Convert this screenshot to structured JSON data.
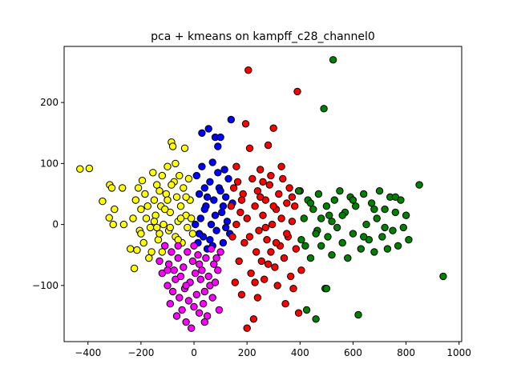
{
  "chart_data": {
    "type": "scatter",
    "title": "pca + kmeans on kampff_c28_channel0",
    "xlabel": "",
    "ylabel": "",
    "xlim": [
      -490,
      1010
    ],
    "ylim": [
      -192,
      292
    ],
    "xticks": [
      -400,
      -200,
      0,
      200,
      400,
      600,
      800,
      1000
    ],
    "yticks": [
      -100,
      0,
      100,
      200
    ],
    "grid": false,
    "legend": "none",
    "marker_edge_color": "#000000",
    "series": [
      {
        "color": "#ffff00",
        "points": [
          [
            -430,
            91
          ],
          [
            -395,
            92
          ],
          [
            -345,
            38
          ],
          [
            -320,
            11
          ],
          [
            -318,
            65
          ],
          [
            -310,
            60
          ],
          [
            -305,
            0
          ],
          [
            -300,
            25
          ],
          [
            -270,
            60
          ],
          [
            -265,
            0
          ],
          [
            -240,
            -40
          ],
          [
            -225,
            -72
          ],
          [
            -230,
            10
          ],
          [
            -220,
            40
          ],
          [
            -215,
            -42
          ],
          [
            -210,
            60
          ],
          [
            -205,
            -10
          ],
          [
            -200,
            25
          ],
          [
            -195,
            72
          ],
          [
            -190,
            -30
          ],
          [
            -185,
            50
          ],
          [
            -180,
            10
          ],
          [
            -170,
            -55
          ],
          [
            -165,
            -5
          ],
          [
            -160,
            -45
          ],
          [
            -155,
            85
          ],
          [
            -150,
            40
          ],
          [
            -145,
            15
          ],
          [
            -140,
            65
          ],
          [
            -135,
            -25
          ],
          [
            -130,
            -15
          ],
          [
            -125,
            30
          ],
          [
            -120,
            80
          ],
          [
            -115,
            0
          ],
          [
            -110,
            -35
          ],
          [
            -105,
            50
          ],
          [
            -100,
            95
          ],
          [
            -95,
            -10
          ],
          [
            -90,
            20
          ],
          [
            -85,
            135
          ],
          [
            -80,
            128
          ],
          [
            -75,
            70
          ],
          [
            -70,
            -20
          ],
          [
            -65,
            45
          ],
          [
            -60,
            5
          ],
          [
            -55,
            80
          ],
          [
            -50,
            30
          ],
          [
            -45,
            -30
          ],
          [
            -40,
            60
          ],
          [
            -35,
            125
          ],
          [
            -30,
            15
          ],
          [
            -25,
            -5
          ],
          [
            -20,
            75
          ],
          [
            -15,
            40
          ],
          [
            -10,
            10
          ],
          [
            -5,
            -15
          ],
          [
            -150,
            5
          ],
          [
            -130,
            55
          ],
          [
            -110,
            25
          ],
          [
            -90,
            -5
          ],
          [
            -70,
            100
          ],
          [
            -50,
            10
          ],
          [
            -120,
            -45
          ],
          [
            -175,
            30
          ],
          [
            -200,
            -15
          ],
          [
            -100,
            40
          ],
          [
            -60,
            -25
          ],
          [
            -85,
            65
          ],
          [
            -30,
            45
          ],
          [
            -140,
            -5
          ]
        ]
      },
      {
        "color": "#0000ff",
        "points": [
          [
            5,
            0
          ],
          [
            10,
            80
          ],
          [
            15,
            -30
          ],
          [
            20,
            50
          ],
          [
            25,
            10
          ],
          [
            30,
            150
          ],
          [
            35,
            -20
          ],
          [
            40,
            60
          ],
          [
            45,
            30
          ],
          [
            50,
            -40
          ],
          [
            55,
            157
          ],
          [
            60,
            70
          ],
          [
            65,
            0
          ],
          [
            70,
            102
          ],
          [
            75,
            40
          ],
          [
            80,
            143
          ],
          [
            85,
            -10
          ],
          [
            90,
            128
          ],
          [
            95,
            60
          ],
          [
            100,
            143
          ],
          [
            105,
            20
          ],
          [
            110,
            -30
          ],
          [
            115,
            90
          ],
          [
            120,
            45
          ],
          [
            125,
            5
          ],
          [
            130,
            75
          ],
          [
            135,
            -15
          ],
          [
            140,
            172
          ],
          [
            145,
            35
          ],
          [
            20,
            -15
          ],
          [
            40,
            25
          ],
          [
            60,
            -25
          ],
          [
            80,
            15
          ],
          [
            100,
            55
          ],
          [
            120,
            -5
          ],
          [
            30,
            95
          ],
          [
            70,
            -35
          ],
          [
            90,
            85
          ],
          [
            110,
            30
          ],
          [
            50,
            45
          ]
        ]
      },
      {
        "color": "#ff00ff",
        "points": [
          [
            -130,
            -60
          ],
          [
            -120,
            -80
          ],
          [
            -110,
            -35
          ],
          [
            -100,
            -100
          ],
          [
            -95,
            -65
          ],
          [
            -90,
            -130
          ],
          [
            -85,
            -45
          ],
          [
            -80,
            -110
          ],
          [
            -75,
            -75
          ],
          [
            -70,
            -90
          ],
          [
            -65,
            -150
          ],
          [
            -60,
            -55
          ],
          [
            -55,
            -120
          ],
          [
            -50,
            -85
          ],
          [
            -45,
            -140
          ],
          [
            -40,
            -70
          ],
          [
            -35,
            -105
          ],
          [
            -30,
            -160
          ],
          [
            -25,
            -45
          ],
          [
            -20,
            -125
          ],
          [
            -15,
            -95
          ],
          [
            -10,
            -170
          ],
          [
            -5,
            -60
          ],
          [
            0,
            -135
          ],
          [
            5,
            -80
          ],
          [
            10,
            -115
          ],
          [
            15,
            -50
          ],
          [
            20,
            -145
          ],
          [
            25,
            -90
          ],
          [
            30,
            -75
          ],
          [
            35,
            -130
          ],
          [
            40,
            -110
          ],
          [
            45,
            -55
          ],
          [
            50,
            -150
          ],
          [
            55,
            -85
          ],
          [
            60,
            -100
          ],
          [
            65,
            -40
          ],
          [
            70,
            -120
          ],
          [
            75,
            -65
          ],
          [
            80,
            -95
          ],
          [
            85,
            -55
          ],
          [
            90,
            -75
          ],
          [
            95,
            -140
          ],
          [
            100,
            -45
          ],
          [
            -60,
            -35
          ],
          [
            0,
            -35
          ],
          [
            -100,
            -75
          ],
          [
            20,
            -65
          ],
          [
            -30,
            -100
          ],
          [
            40,
            -160
          ]
        ]
      },
      {
        "color": "#ff0000",
        "points": [
          [
            140,
            30
          ],
          [
            145,
            -20
          ],
          [
            150,
            60
          ],
          [
            155,
            -95
          ],
          [
            160,
            0
          ],
          [
            165,
            70
          ],
          [
            170,
            -60
          ],
          [
            175,
            20
          ],
          [
            180,
            -115
          ],
          [
            185,
            50
          ],
          [
            190,
            -30
          ],
          [
            195,
            165
          ],
          [
            200,
            10
          ],
          [
            205,
            253
          ],
          [
            210,
            125
          ],
          [
            215,
            -80
          ],
          [
            220,
            75
          ],
          [
            225,
            -155
          ],
          [
            230,
            30
          ],
          [
            235,
            -45
          ],
          [
            240,
            55
          ],
          [
            245,
            -10
          ],
          [
            250,
            90
          ],
          [
            255,
            -60
          ],
          [
            260,
            15
          ],
          [
            265,
            -90
          ],
          [
            270,
            40
          ],
          [
            275,
            -25
          ],
          [
            280,
            130
          ],
          [
            285,
            65
          ],
          [
            290,
            -45
          ],
          [
            295,
            0
          ],
          [
            300,
            158
          ],
          [
            305,
            -70
          ],
          [
            310,
            25
          ],
          [
            315,
            -100
          ],
          [
            320,
            50
          ],
          [
            325,
            -35
          ],
          [
            330,
            10
          ],
          [
            335,
            75
          ],
          [
            340,
            -55
          ],
          [
            345,
            -130
          ],
          [
            350,
            35
          ],
          [
            355,
            -20
          ],
          [
            360,
            60
          ],
          [
            365,
            -85
          ],
          [
            370,
            5
          ],
          [
            375,
            -105
          ],
          [
            380,
            30
          ],
          [
            385,
            -40
          ],
          [
            390,
            218
          ],
          [
            395,
            -145
          ],
          [
            400,
            55
          ],
          [
            405,
            -75
          ],
          [
            200,
            -170
          ],
          [
            210,
            -20
          ],
          [
            230,
            -95
          ],
          [
            250,
            45
          ],
          [
            270,
            -5
          ],
          [
            290,
            80
          ],
          [
            310,
            -30
          ],
          [
            330,
            95
          ],
          [
            350,
            -15
          ],
          [
            370,
            45
          ],
          [
            160,
            95
          ],
          [
            180,
            40
          ],
          [
            240,
            -120
          ],
          [
            260,
            70
          ],
          [
            280,
            -65
          ],
          [
            300,
            30
          ]
        ]
      },
      {
        "color": "#008000",
        "points": [
          [
            395,
            55
          ],
          [
            405,
            -25
          ],
          [
            415,
            10
          ],
          [
            425,
            -140
          ],
          [
            430,
            40
          ],
          [
            440,
            -55
          ],
          [
            450,
            25
          ],
          [
            460,
            -155
          ],
          [
            465,
            -10
          ],
          [
            470,
            50
          ],
          [
            480,
            -35
          ],
          [
            490,
            190
          ],
          [
            495,
            -105
          ],
          [
            500,
            30
          ],
          [
            505,
            -20
          ],
          [
            510,
            15
          ],
          [
            520,
            -50
          ],
          [
            525,
            270
          ],
          [
            530,
            40
          ],
          [
            540,
            -5
          ],
          [
            550,
            55
          ],
          [
            560,
            -30
          ],
          [
            570,
            20
          ],
          [
            580,
            -55
          ],
          [
            590,
            45
          ],
          [
            600,
            -15
          ],
          [
            610,
            30
          ],
          [
            620,
            -148
          ],
          [
            630,
            -40
          ],
          [
            640,
            50
          ],
          [
            650,
            0
          ],
          [
            660,
            -25
          ],
          [
            670,
            35
          ],
          [
            680,
            -45
          ],
          [
            690,
            10
          ],
          [
            700,
            55
          ],
          [
            710,
            -20
          ],
          [
            720,
            25
          ],
          [
            730,
            -40
          ],
          [
            740,
            45
          ],
          [
            750,
            -10
          ],
          [
            760,
            20
          ],
          [
            770,
            -35
          ],
          [
            780,
            40
          ],
          [
            790,
            -5
          ],
          [
            800,
            15
          ],
          [
            810,
            -25
          ],
          [
            850,
            65
          ],
          [
            940,
            -85
          ],
          [
            420,
            -35
          ],
          [
            440,
            35
          ],
          [
            460,
            -15
          ],
          [
            480,
            10
          ],
          [
            500,
            -105
          ],
          [
            520,
            5
          ],
          [
            560,
            15
          ],
          [
            600,
            40
          ],
          [
            640,
            -20
          ],
          [
            680,
            25
          ],
          [
            720,
            -5
          ],
          [
            760,
            45
          ]
        ]
      }
    ]
  }
}
